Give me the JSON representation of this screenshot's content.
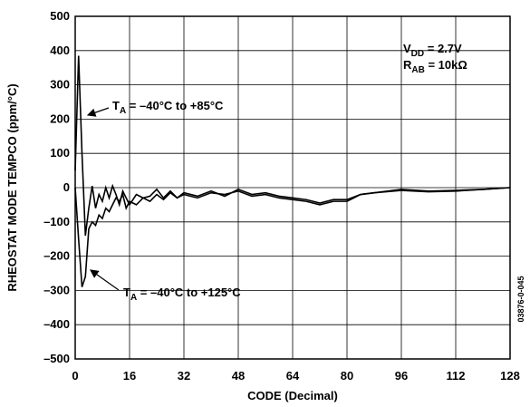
{
  "chart_data": {
    "type": "line",
    "xlabel": "CODE (Decimal)",
    "ylabel": "RHEOSTAT MODE TEMPCO (ppm/°C)",
    "side_note": "03876-0-045",
    "xlim": [
      0,
      128
    ],
    "xticks": [
      0,
      16,
      32,
      48,
      64,
      80,
      96,
      112,
      128
    ],
    "ylim": [
      -500,
      500
    ],
    "yticks": [
      {
        "value": -500,
        "label": "–500"
      },
      {
        "value": -400,
        "label": "–400"
      },
      {
        "value": -300,
        "label": "–300"
      },
      {
        "value": -200,
        "label": "–200"
      },
      {
        "value": -100,
        "label": "–100"
      },
      0,
      100,
      200,
      300,
      400,
      500
    ],
    "grid": true,
    "annotations": [
      {
        "text": "T",
        "sub": "A",
        "rest": " = –40°C to +85°C"
      },
      {
        "text": "T",
        "sub": "A",
        "rest": " = –40°C to +125°C"
      },
      {
        "text": "V",
        "sub": "DD",
        "rest": " = 2.7V"
      },
      {
        "text": "R",
        "sub": "AB",
        "rest": " = 10kΩ"
      }
    ],
    "x": [
      0,
      1,
      2,
      3,
      4,
      5,
      6,
      7,
      8,
      9,
      10,
      11,
      12,
      13,
      14,
      15,
      16,
      18,
      20,
      22,
      24,
      26,
      28,
      30,
      32,
      36,
      40,
      44,
      48,
      52,
      56,
      60,
      64,
      68,
      72,
      76,
      80,
      84,
      88,
      96,
      104,
      112,
      120,
      128
    ],
    "series": [
      {
        "color": "#000000",
        "values": [
          50,
          385,
          100,
          -140,
          -60,
          5,
          -60,
          -20,
          -40,
          0,
          -30,
          5,
          -20,
          -50,
          -10,
          -30,
          -50,
          -20,
          -30,
          -25,
          -5,
          -30,
          -10,
          -30,
          -15,
          -25,
          -10,
          -25,
          -5,
          -20,
          -15,
          -25,
          -30,
          -35,
          -45,
          -35,
          -35,
          -20,
          -15,
          -5,
          -10,
          -8,
          -5,
          0
        ]
      },
      {
        "color": "#000000",
        "values": [
          0,
          -150,
          -290,
          -260,
          -120,
          -100,
          -110,
          -80,
          -90,
          -60,
          -70,
          -50,
          -30,
          -40,
          -20,
          -60,
          -40,
          -50,
          -30,
          -40,
          -20,
          -35,
          -15,
          -30,
          -20,
          -30,
          -15,
          -20,
          -10,
          -25,
          -20,
          -30,
          -35,
          -40,
          -50,
          -40,
          -40,
          -20,
          -15,
          -8,
          -12,
          -10,
          -5,
          0
        ]
      }
    ]
  }
}
